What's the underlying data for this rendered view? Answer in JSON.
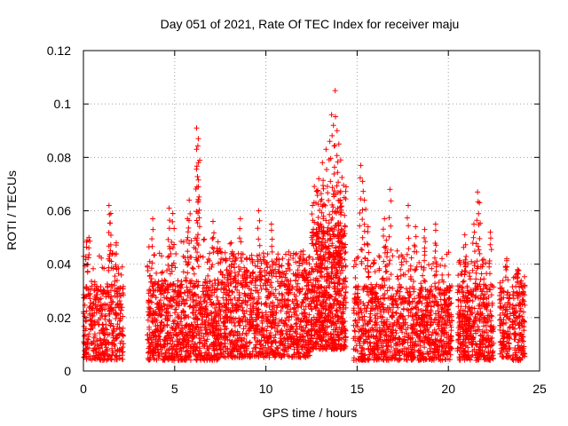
{
  "chart_data": {
    "type": "scatter",
    "title": "Day 051 of 2021, Rate Of TEC Index for receiver maju",
    "xlabel": "GPS time / hours",
    "ylabel": "ROTI / TECUs",
    "xlim": [
      0,
      25
    ],
    "ylim": [
      0,
      0.12
    ],
    "x_ticks": [
      0,
      5,
      10,
      15,
      20,
      25
    ],
    "x_tick_labels": [
      "0",
      "5",
      "10",
      "15",
      "20",
      "25"
    ],
    "y_ticks": [
      0,
      0.02,
      0.04,
      0.06,
      0.08,
      0.1,
      0.12
    ],
    "y_tick_labels": [
      "0",
      "0.02",
      "0.04",
      "0.06",
      "0.08",
      "0.1",
      "0.12"
    ],
    "grid": true,
    "marker": "+",
    "color": "#ff0000",
    "notable_points": [
      {
        "x": 0.2,
        "y": 0.049
      },
      {
        "x": 0.3,
        "y": 0.05
      },
      {
        "x": 1.4,
        "y": 0.062
      },
      {
        "x": 1.5,
        "y": 0.059
      },
      {
        "x": 1.8,
        "y": 0.048
      },
      {
        "x": 3.8,
        "y": 0.057
      },
      {
        "x": 4.7,
        "y": 0.061
      },
      {
        "x": 4.9,
        "y": 0.059
      },
      {
        "x": 5.7,
        "y": 0.057
      },
      {
        "x": 5.8,
        "y": 0.064
      },
      {
        "x": 6.2,
        "y": 0.091
      },
      {
        "x": 6.3,
        "y": 0.087
      },
      {
        "x": 6.2,
        "y": 0.083
      },
      {
        "x": 6.3,
        "y": 0.069
      },
      {
        "x": 6.3,
        "y": 0.078
      },
      {
        "x": 7.1,
        "y": 0.056
      },
      {
        "x": 8.1,
        "y": 0.048
      },
      {
        "x": 8.6,
        "y": 0.057
      },
      {
        "x": 9.6,
        "y": 0.06
      },
      {
        "x": 10.3,
        "y": 0.055
      },
      {
        "x": 12.9,
        "y": 0.072
      },
      {
        "x": 13.1,
        "y": 0.078
      },
      {
        "x": 13.3,
        "y": 0.083
      },
      {
        "x": 13.5,
        "y": 0.086
      },
      {
        "x": 13.6,
        "y": 0.096
      },
      {
        "x": 13.7,
        "y": 0.092
      },
      {
        "x": 13.8,
        "y": 0.105
      },
      {
        "x": 13.9,
        "y": 0.09
      },
      {
        "x": 14.0,
        "y": 0.085
      },
      {
        "x": 14.1,
        "y": 0.079
      },
      {
        "x": 15.2,
        "y": 0.077
      },
      {
        "x": 15.3,
        "y": 0.071
      },
      {
        "x": 15.4,
        "y": 0.064
      },
      {
        "x": 15.6,
        "y": 0.054
      },
      {
        "x": 16.5,
        "y": 0.057
      },
      {
        "x": 16.8,
        "y": 0.068
      },
      {
        "x": 16.6,
        "y": 0.049
      },
      {
        "x": 17.8,
        "y": 0.062
      },
      {
        "x": 18.2,
        "y": 0.054
      },
      {
        "x": 18.7,
        "y": 0.053
      },
      {
        "x": 19.3,
        "y": 0.055
      },
      {
        "x": 20.9,
        "y": 0.051
      },
      {
        "x": 21.4,
        "y": 0.055
      },
      {
        "x": 21.6,
        "y": 0.067
      },
      {
        "x": 21.7,
        "y": 0.063
      },
      {
        "x": 22.3,
        "y": 0.052
      },
      {
        "x": 23.2,
        "y": 0.042
      },
      {
        "x": 23.8,
        "y": 0.038
      }
    ],
    "clusters": [
      {
        "x_range": [
          0,
          2.2
        ],
        "y_low": 0.004,
        "y_base_high": 0.032,
        "y_peak": 0.045,
        "density": 420
      },
      {
        "x_range": [
          3.5,
          7.5
        ],
        "y_low": 0.004,
        "y_base_high": 0.034,
        "y_peak": 0.05,
        "density": 900
      },
      {
        "x_range": [
          7.5,
          12.5
        ],
        "y_low": 0.005,
        "y_base_high": 0.038,
        "y_peak": 0.045,
        "density": 1100
      },
      {
        "x_range": [
          12.5,
          14.4
        ],
        "y_low": 0.008,
        "y_base_high": 0.055,
        "y_peak": 0.07,
        "density": 700
      },
      {
        "x_range": [
          14.8,
          20.2
        ],
        "y_low": 0.004,
        "y_base_high": 0.032,
        "y_peak": 0.045,
        "density": 1100
      },
      {
        "x_range": [
          20.5,
          22.5
        ],
        "y_low": 0.004,
        "y_base_high": 0.032,
        "y_peak": 0.042,
        "density": 450
      },
      {
        "x_range": [
          22.8,
          23.4
        ],
        "y_low": 0.005,
        "y_base_high": 0.03,
        "y_peak": 0.038,
        "density": 120
      },
      {
        "x_range": [
          23.5,
          24.2
        ],
        "y_low": 0.004,
        "y_base_high": 0.032,
        "y_peak": 0.036,
        "density": 160
      }
    ]
  }
}
